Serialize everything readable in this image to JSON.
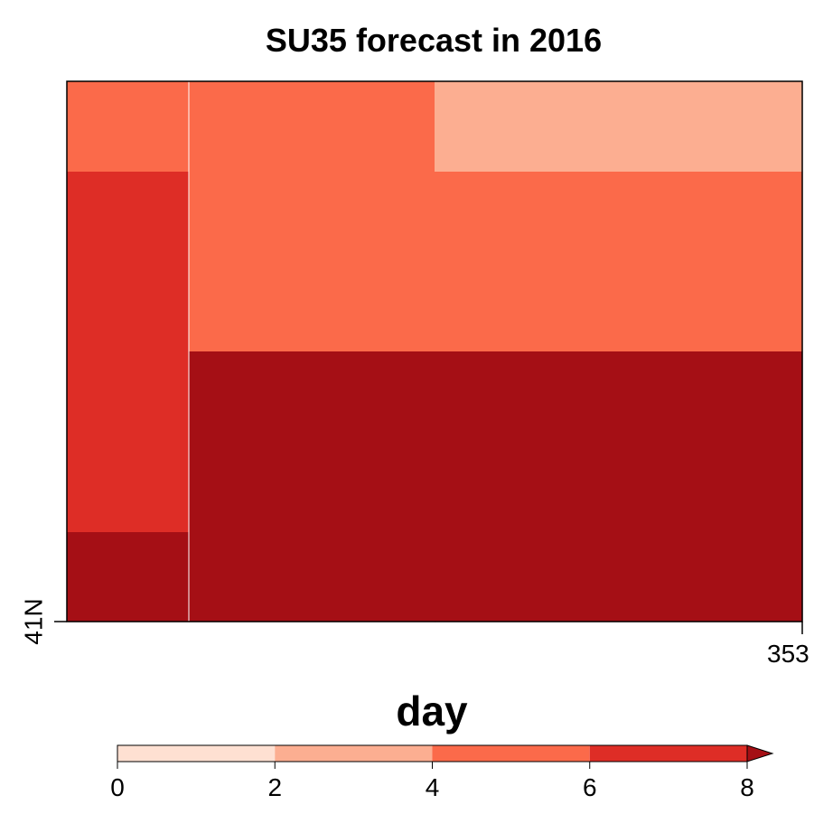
{
  "title": "SU35 forecast in 2016",
  "map": {
    "y_tick_label": "41N",
    "x_tick_label": "353",
    "grid": {
      "cols": 3,
      "rows": 6
    },
    "cells": [
      {
        "col": 0,
        "row": 0,
        "value": 5
      },
      {
        "col": 1,
        "row": 0,
        "value": 5
      },
      {
        "col": 2,
        "row": 0,
        "value": 3
      },
      {
        "col": 0,
        "row": 1,
        "value": 7
      },
      {
        "col": 1,
        "row": 1,
        "value": 5
      },
      {
        "col": 2,
        "row": 1,
        "value": 5
      },
      {
        "col": 0,
        "row": 2,
        "value": 7
      },
      {
        "col": 1,
        "row": 2,
        "value": 5
      },
      {
        "col": 2,
        "row": 2,
        "value": 5
      },
      {
        "col": 0,
        "row": 3,
        "value": 7
      },
      {
        "col": 1,
        "row": 3,
        "value": 8
      },
      {
        "col": 2,
        "row": 3,
        "value": 8
      },
      {
        "col": 0,
        "row": 4,
        "value": 7
      },
      {
        "col": 1,
        "row": 4,
        "value": 8
      },
      {
        "col": 2,
        "row": 4,
        "value": 8
      },
      {
        "col": 0,
        "row": 5,
        "value": 8
      },
      {
        "col": 1,
        "row": 5,
        "value": 8
      },
      {
        "col": 2,
        "row": 5,
        "value": 8
      }
    ]
  },
  "colorbar": {
    "label": "day",
    "ticks": [
      "0",
      "2",
      "4",
      "6",
      "8"
    ],
    "bins": [
      {
        "min": 0,
        "max": 2,
        "color": "#fee0d2"
      },
      {
        "min": 2,
        "max": 4,
        "color": "#fcae91"
      },
      {
        "min": 4,
        "max": 6,
        "color": "#fb6a4a"
      },
      {
        "min": 6,
        "max": 8,
        "color": "#de2d26"
      },
      {
        "min": 8,
        "max": null,
        "color": "#a50f15"
      }
    ]
  }
}
